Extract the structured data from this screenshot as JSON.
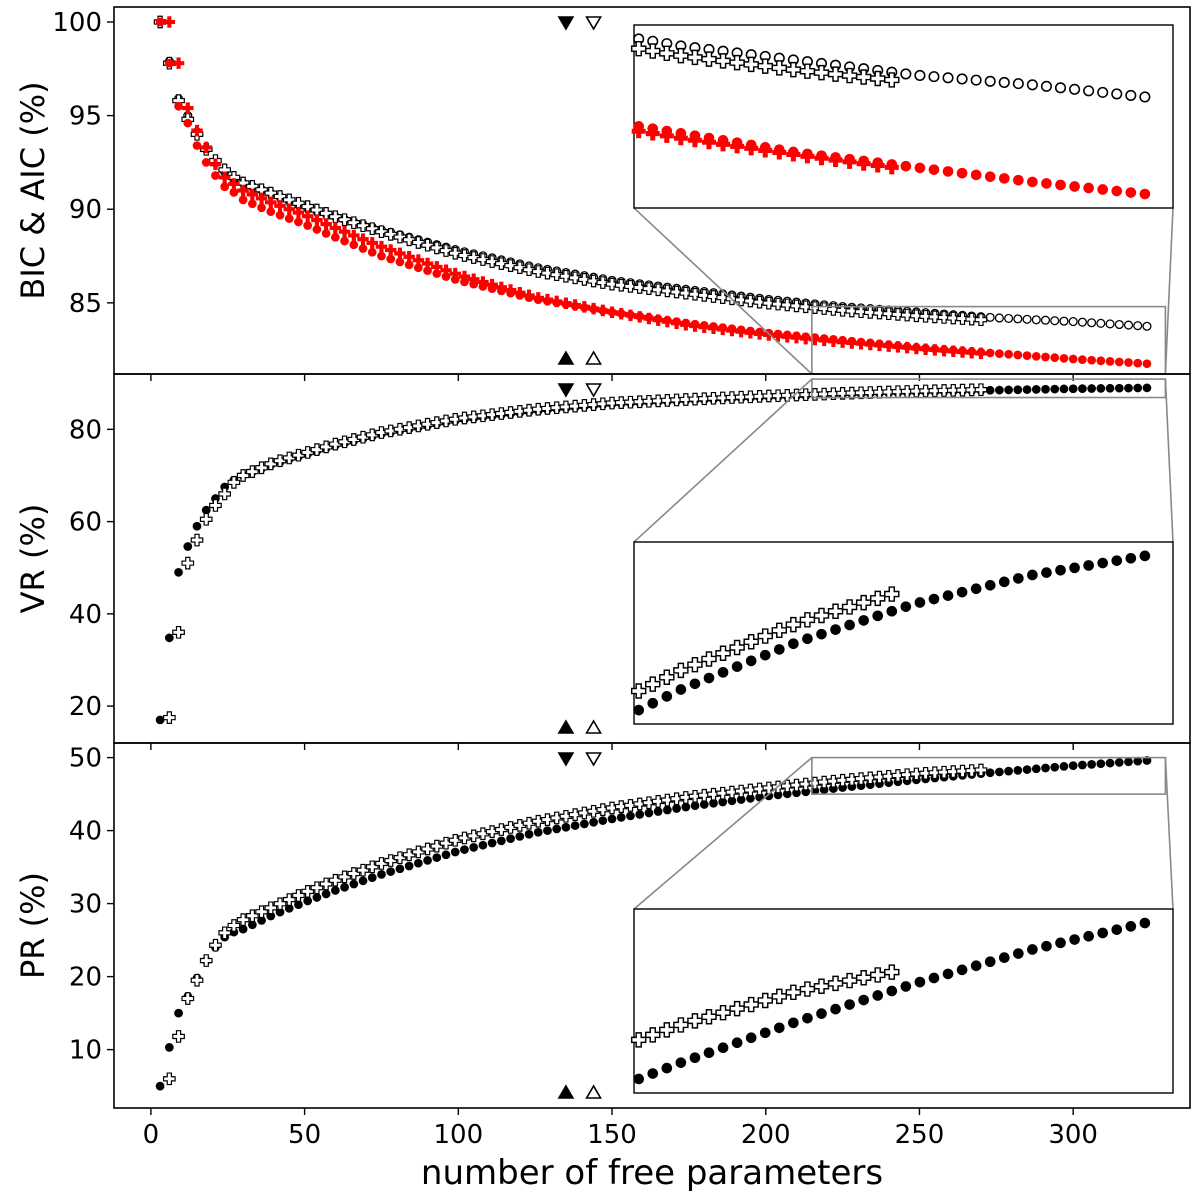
{
  "figure": {
    "xlabel": "number of free parameters",
    "colors": {
      "ink": "#000000",
      "accent": "#ff0000",
      "zoom_frame": "#888888"
    },
    "x_axis": {
      "range": [
        -12,
        338
      ],
      "ticks": [
        0,
        50,
        100,
        150,
        200,
        250,
        300
      ],
      "tick_labels": [
        "0",
        "50",
        "100",
        "150",
        "200",
        "250",
        "300"
      ]
    }
  },
  "chart_data": [
    {
      "type": "scatter",
      "panel": "top",
      "ylabel": "BIC & AIC (%)",
      "ylim": [
        81.2,
        100.8
      ],
      "yticks": [
        85,
        90,
        95,
        100
      ],
      "ytick_labels": [
        "85",
        "90",
        "95",
        "100"
      ],
      "series": [
        {
          "name": "BIC circles",
          "marker": "open-circle",
          "color": "#000000",
          "x_start": 6,
          "x_step": 3,
          "x_end": 324,
          "y_anchor_x": [
            6,
            9,
            12,
            15,
            18,
            21,
            24,
            27,
            30,
            40,
            50,
            60,
            75,
            100,
            125,
            150,
            175,
            200,
            225,
            250,
            275,
            300,
            324
          ],
          "y_anchor_y": [
            97.9,
            95.9,
            95.0,
            94.1,
            93.2,
            92.5,
            92.0,
            91.6,
            91.4,
            90.8,
            90.1,
            89.6,
            88.9,
            87.8,
            86.9,
            86.2,
            85.7,
            85.2,
            84.8,
            84.5,
            84.2,
            84.0,
            83.75
          ]
        },
        {
          "name": "BIC crosses",
          "marker": "open-plus",
          "color": "#000000",
          "x_start": 3,
          "x_step": 3,
          "x_end": 270,
          "y_anchor_x": [
            3,
            6,
            9,
            12,
            15,
            18,
            21,
            24,
            27,
            30,
            40,
            50,
            60,
            75,
            100,
            125,
            150,
            175,
            200,
            225,
            250,
            270
          ],
          "y_anchor_y": [
            100.0,
            97.8,
            95.8,
            94.8,
            94.0,
            93.2,
            92.6,
            92.1,
            91.7,
            91.4,
            90.8,
            90.2,
            89.6,
            88.8,
            87.6,
            86.7,
            86.0,
            85.5,
            85.0,
            84.6,
            84.3,
            84.1
          ]
        },
        {
          "name": "AIC circles",
          "marker": "filled-circle",
          "color": "#ff0000",
          "x_start": 3,
          "x_step": 3,
          "x_end": 324,
          "y_anchor_x": [
            3,
            6,
            9,
            12,
            15,
            18,
            21,
            24,
            27,
            30,
            40,
            50,
            60,
            75,
            100,
            125,
            150,
            175,
            200,
            225,
            250,
            275,
            300,
            324
          ],
          "y_anchor_y": [
            100.0,
            97.8,
            95.5,
            94.6,
            93.4,
            92.5,
            91.8,
            91.2,
            90.9,
            90.5,
            89.8,
            89.2,
            88.5,
            87.5,
            86.2,
            85.2,
            84.5,
            83.9,
            83.4,
            83.0,
            82.6,
            82.3,
            82.0,
            81.75
          ]
        },
        {
          "name": "AIC crosses",
          "marker": "filled-plus",
          "color": "#ff0000",
          "x_start": 6,
          "x_step": 3,
          "x_end": 270,
          "y_anchor_x": [
            6,
            9,
            12,
            15,
            18,
            21,
            24,
            30,
            40,
            50,
            60,
            75,
            100,
            125,
            150,
            175,
            200,
            225,
            250,
            270
          ],
          "y_anchor_y": [
            100.0,
            97.8,
            95.4,
            94.2,
            93.3,
            92.4,
            91.7,
            91.0,
            90.3,
            89.7,
            89.0,
            88.0,
            86.5,
            85.3,
            84.5,
            83.8,
            83.3,
            82.9,
            82.55,
            82.3
          ]
        }
      ],
      "markers_top": [
        {
          "x": 135,
          "fill": "filled"
        },
        {
          "x": 144,
          "fill": "open"
        }
      ],
      "markers_bottom": [
        {
          "x": 135,
          "fill": "filled"
        },
        {
          "x": 144,
          "fill": "open"
        }
      ],
      "zoom_region": {
        "x": [
          215,
          330
        ],
        "y": [
          81.2,
          84.8
        ]
      },
      "inset_placement": "upper right",
      "inset_connect": "lower-left and lower-right corners"
    },
    {
      "type": "scatter",
      "panel": "middle",
      "ylabel": "VR (%)",
      "ylim": [
        12,
        92
      ],
      "yticks": [
        20,
        40,
        60,
        80
      ],
      "ytick_labels": [
        "20",
        "40",
        "60",
        "80"
      ],
      "series": [
        {
          "name": "VR circles",
          "marker": "filled-circle",
          "color": "#000000",
          "x_start": 3,
          "x_step": 3,
          "x_end": 324,
          "y_anchor_x": [
            3,
            6,
            9,
            12,
            15,
            18,
            21,
            24,
            27,
            30,
            40,
            50,
            60,
            75,
            100,
            125,
            150,
            175,
            200,
            225,
            250,
            275,
            300,
            324
          ],
          "y_anchor_y": [
            17.0,
            34.8,
            49.0,
            54.6,
            59.0,
            62.5,
            65.0,
            67.5,
            69.0,
            70.0,
            72.5,
            74.5,
            76.5,
            79.0,
            82.0,
            84.0,
            85.5,
            86.3,
            87.0,
            87.6,
            88.1,
            88.5,
            88.8,
            89.0
          ]
        },
        {
          "name": "VR crosses",
          "marker": "open-plus",
          "color": "#000000",
          "x_start": 6,
          "x_step": 3,
          "x_end": 270,
          "y_anchor_x": [
            6,
            9,
            12,
            15,
            18,
            21,
            24,
            27,
            30,
            40,
            50,
            60,
            75,
            100,
            125,
            150,
            175,
            200,
            225,
            250,
            270
          ],
          "y_anchor_y": [
            17.5,
            36.0,
            51.0,
            56.0,
            60.5,
            63.5,
            66.0,
            68.5,
            70.0,
            72.8,
            74.8,
            76.8,
            79.3,
            82.3,
            84.3,
            85.7,
            86.5,
            87.2,
            87.8,
            88.3,
            88.6
          ]
        }
      ],
      "markers_top": [
        {
          "x": 135,
          "fill": "filled"
        },
        {
          "x": 144,
          "fill": "open"
        }
      ],
      "markers_bottom": [
        {
          "x": 135,
          "fill": "filled"
        },
        {
          "x": 144,
          "fill": "open"
        }
      ],
      "zoom_region": {
        "x": [
          215,
          330
        ],
        "y": [
          86.9,
          90.9
        ]
      },
      "inset_placement": "lower right",
      "inset_connect": "upper-left and upper-right corners"
    },
    {
      "type": "scatter",
      "panel": "bottom",
      "ylabel": "PR (%)",
      "ylim": [
        2,
        52
      ],
      "yticks": [
        10,
        20,
        30,
        40,
        50
      ],
      "ytick_labels": [
        "10",
        "20",
        "30",
        "40",
        "50"
      ],
      "series": [
        {
          "name": "PR circles",
          "marker": "filled-circle",
          "color": "#000000",
          "x_start": 3,
          "x_step": 3,
          "x_end": 324,
          "y_anchor_x": [
            3,
            6,
            9,
            12,
            15,
            18,
            21,
            24,
            27,
            30,
            40,
            50,
            60,
            75,
            100,
            125,
            150,
            175,
            200,
            225,
            250,
            275,
            300,
            324
          ],
          "y_anchor_y": [
            5.0,
            10.3,
            15.0,
            17.3,
            19.8,
            22.2,
            24.0,
            25.4,
            26.1,
            26.5,
            28.5,
            30.2,
            31.8,
            34.0,
            37.2,
            39.7,
            41.6,
            43.3,
            44.7,
            45.9,
            47.0,
            48.0,
            48.9,
            49.6
          ]
        },
        {
          "name": "PR crosses",
          "marker": "open-plus",
          "color": "#000000",
          "x_start": 6,
          "x_step": 3,
          "x_end": 270,
          "y_anchor_x": [
            6,
            9,
            12,
            15,
            18,
            21,
            24,
            27,
            30,
            40,
            50,
            60,
            75,
            100,
            125,
            150,
            175,
            200,
            225,
            250,
            270
          ],
          "y_anchor_y": [
            6.0,
            11.8,
            17.0,
            19.5,
            22.2,
            24.3,
            26.0,
            27.0,
            27.8,
            29.6,
            31.5,
            33.2,
            35.5,
            38.8,
            41.2,
            43.1,
            44.6,
            45.8,
            46.9,
            47.8,
            48.3
          ]
        }
      ],
      "markers_top": [
        {
          "x": 135,
          "fill": "filled"
        },
        {
          "x": 144,
          "fill": "open"
        }
      ],
      "markers_bottom": [
        {
          "x": 135,
          "fill": "filled"
        },
        {
          "x": 144,
          "fill": "open"
        }
      ],
      "zoom_region": {
        "x": [
          215,
          330
        ],
        "y": [
          45.0,
          50.0
        ]
      },
      "inset_placement": "lower right",
      "inset_connect": "upper-left and upper-right corners"
    }
  ]
}
